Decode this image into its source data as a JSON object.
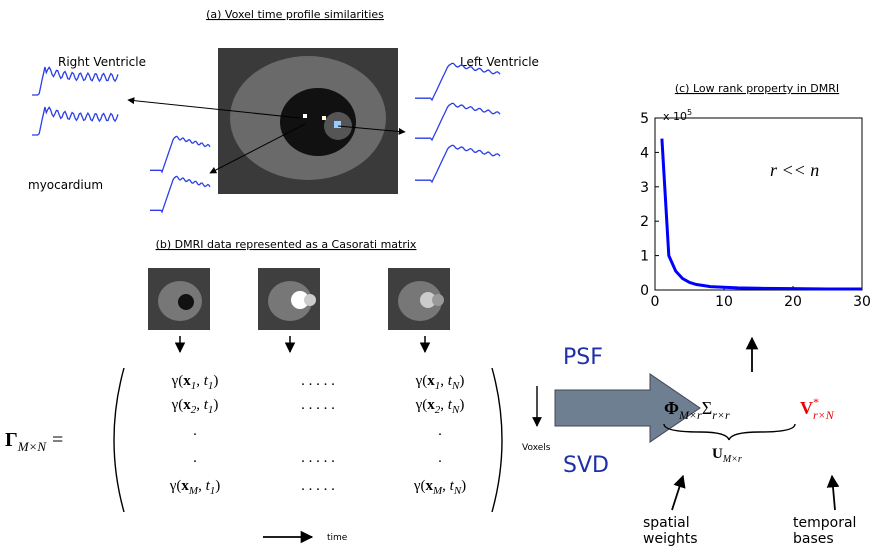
{
  "panel_a": {
    "title": "(a) Voxel time profile similarities",
    "right_ventricle": "Right Ventricle",
    "left_ventricle": "Left Ventricle",
    "myocardium": "myocardium"
  },
  "panel_b": {
    "title": "(b) DMRI data represented as a Casorati matrix",
    "lhs": {
      "symbol": "Γ",
      "subscript": "M×N",
      "equals": "="
    },
    "rows": [
      {
        "left": [
          "γ(",
          "x",
          "1",
          ", ",
          "t",
          "1",
          ")"
        ],
        "middle": ". . . . .",
        "right": [
          "γ(",
          "x",
          "1",
          ", ",
          "t",
          "N",
          ")"
        ]
      },
      {
        "left": [
          "γ(",
          "x",
          "2",
          ", ",
          "t",
          "1",
          ")"
        ],
        "middle": ". . . . .",
        "right": [
          "γ(",
          "x",
          "2",
          ", ",
          "t",
          "N",
          ")"
        ]
      },
      {
        "left": [
          "."
        ],
        "right": [
          "."
        ]
      },
      {
        "left": [
          "."
        ],
        "middle": ". . . . .",
        "right": [
          "."
        ]
      },
      {
        "left": [
          "γ(",
          "x",
          "M",
          ", ",
          "t",
          "1",
          ")"
        ],
        "middle": ". . . . .",
        "right": [
          "γ(",
          "x",
          "M",
          ", ",
          "t",
          "N",
          ")"
        ]
      }
    ],
    "row_axis": "Voxels",
    "column_axis": "time"
  },
  "decomposition": {
    "top": "PSF",
    "bottom": "SVD",
    "phi": {
      "symbol": "Φ",
      "subscript": "M×r"
    },
    "sigma": {
      "symbol": "Σ",
      "subscript": "r×r"
    },
    "v": {
      "symbol": "V",
      "superscript": "*",
      "subscript": "r×N"
    },
    "u": {
      "symbol": "U",
      "subscript": "M×r"
    },
    "spatial": [
      "spatial",
      "weights"
    ],
    "temporal": [
      "temporal",
      "bases"
    ]
  },
  "chart_data": {
    "type": "line",
    "title": "(c) Low rank property in DMRI",
    "scale": {
      "base": "x 10",
      "exponent": "5"
    },
    "annotation": "r << n",
    "color": "#0000ff",
    "x": [
      1,
      2,
      3,
      4,
      5,
      6,
      7,
      8,
      10,
      12,
      15,
      20,
      25,
      30
    ],
    "values": [
      4.4,
      1.0,
      0.55,
      0.33,
      0.22,
      0.16,
      0.13,
      0.1,
      0.08,
      0.06,
      0.05,
      0.04,
      0.03,
      0.03
    ],
    "xlim": [
      0,
      30
    ],
    "ylim": [
      0,
      5
    ],
    "xticks": [
      0,
      10,
      20,
      30
    ],
    "yticks": [
      0,
      1,
      2,
      3,
      4,
      5
    ]
  }
}
